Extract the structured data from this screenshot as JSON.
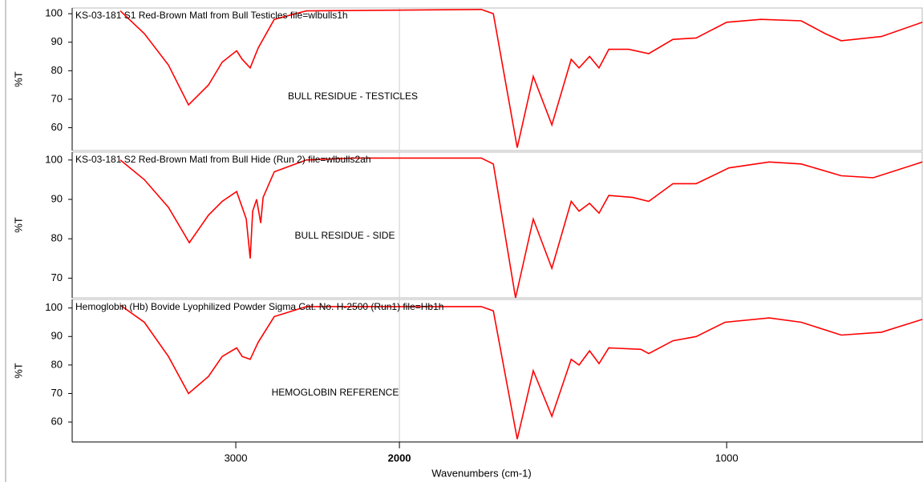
{
  "chart_data": [
    {
      "type": "line",
      "title": "KS-03-181 S1 Red-Brown Matl from Bull Testicles file=wlbulls1h",
      "annotation": "BULL RESIDUE - TESTICLES",
      "ylabel": "%T",
      "color": "#ff0000",
      "xlim": [
        4000,
        400
      ],
      "xbreak": 2000,
      "ylim": [
        52,
        102
      ],
      "yticks": [
        60,
        70,
        80,
        90,
        100
      ],
      "x": [
        3706,
        3559,
        3412,
        3289,
        3167,
        3083,
        2995,
        2961,
        2912,
        2863,
        2765,
        2569,
        1750,
        1713,
        1640,
        1591,
        1534,
        1475,
        1451,
        1419,
        1390,
        1360,
        1299,
        1238,
        1164,
        1093,
        1000,
        895,
        772,
        699,
        650,
        527,
        402
      ],
      "values": [
        101,
        93,
        82,
        68,
        75,
        83,
        87,
        84,
        81,
        88,
        98,
        101,
        101.5,
        100,
        53,
        78,
        61,
        84,
        81,
        85,
        81,
        87.5,
        87.5,
        86,
        91,
        91.5,
        97,
        98,
        97.5,
        93,
        90.5,
        92,
        97
      ]
    },
    {
      "type": "line",
      "title": "KS-03-181 S2 Red-Brown Matl from Bull Hide (Run 2) file=wlbulls2ah",
      "annotation": "BULL RESIDUE - SIDE",
      "ylabel": "%T",
      "color": "#ff0000",
      "xlim": [
        4000,
        400
      ],
      "xbreak": 2000,
      "ylim": [
        65,
        102
      ],
      "yticks": [
        70,
        80,
        90,
        100
      ],
      "x": [
        3706,
        3559,
        3412,
        3284,
        3167,
        3083,
        2995,
        2961,
        2936,
        2912,
        2897,
        2873,
        2848,
        2833,
        2765,
        2569,
        2284,
        1750,
        1713,
        1645,
        1591,
        1534,
        1475,
        1451,
        1419,
        1390,
        1360,
        1287,
        1238,
        1164,
        1093,
        993,
        870,
        772,
        650,
        552,
        402
      ],
      "values": [
        100,
        95,
        88,
        79,
        86,
        89.5,
        92,
        88,
        85,
        75,
        87,
        90,
        84,
        90.5,
        97,
        100,
        100.5,
        100.5,
        99,
        65,
        85,
        72.5,
        89.5,
        87,
        89,
        86.5,
        91,
        90.5,
        89.5,
        94,
        94,
        98,
        99.5,
        99,
        96,
        95.5,
        99.5
      ]
    },
    {
      "type": "line",
      "title": "Hemoglobin (Hb) Bovide Lyophilized Powder Sigma Cat. No. H-2500 (Run1) file=Hb1h",
      "annotation": "HEMOGLOBIN REFERENCE",
      "ylabel": "%T",
      "color": "#ff0000",
      "xlim": [
        4000,
        400
      ],
      "xbreak": 2000,
      "ylim": [
        53,
        103
      ],
      "yticks": [
        60,
        70,
        80,
        90,
        100
      ],
      "xlabel": "Wavenumbers (cm-1)",
      "xticks": [
        3000,
        2000,
        1000
      ],
      "x": [
        3706,
        3559,
        3412,
        3289,
        3167,
        3083,
        2995,
        2961,
        2912,
        2863,
        2765,
        2569,
        1750,
        1713,
        1640,
        1591,
        1534,
        1475,
        1451,
        1419,
        1390,
        1360,
        1262,
        1238,
        1164,
        1093,
        1005,
        870,
        772,
        650,
        527,
        402
      ],
      "values": [
        101,
        95,
        83,
        70,
        76,
        83,
        86,
        83,
        82,
        88,
        97,
        100.5,
        100.5,
        99,
        54,
        78,
        62,
        82,
        80,
        85,
        80.5,
        86,
        85.5,
        84,
        88.5,
        90,
        95,
        96.5,
        95,
        90.5,
        91.5,
        96
      ]
    }
  ]
}
